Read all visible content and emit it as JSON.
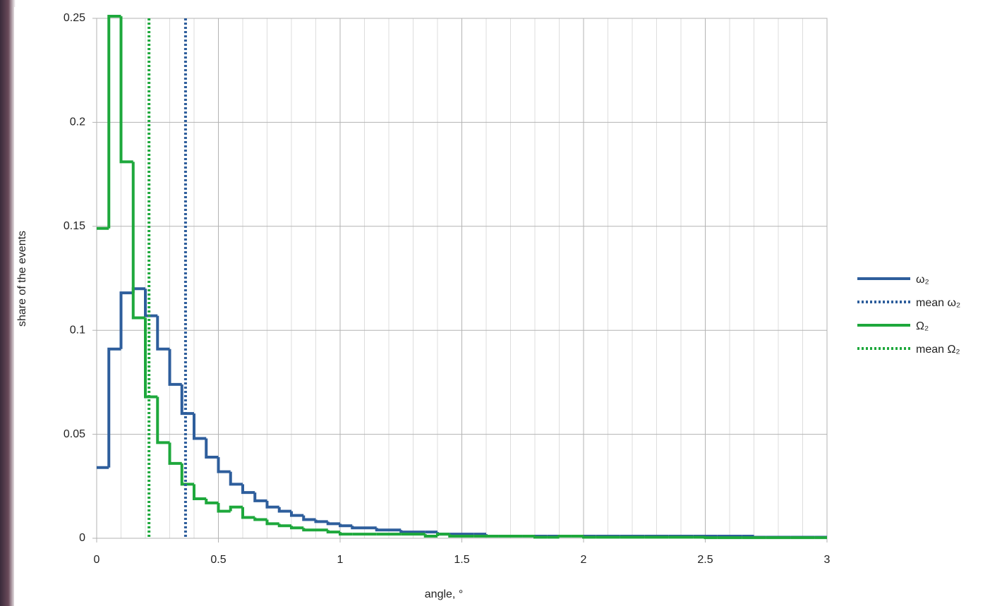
{
  "chart_data": {
    "type": "histogram",
    "x_label": "angle, °",
    "y_label": "share of the events",
    "bins": [
      0,
      0.05,
      0.1,
      0.15,
      0.2,
      0.25,
      0.3,
      0.35,
      0.4,
      0.45,
      0.5,
      0.55,
      0.6,
      0.65,
      0.7,
      0.75,
      0.8,
      0.85,
      0.9,
      0.95,
      1,
      1.05,
      1.1,
      1.15,
      1.2,
      1.25,
      1.3,
      1.35,
      1.4,
      1.45,
      1.5,
      1.55,
      1.6,
      1.65,
      1.7,
      1.75,
      1.8,
      1.85,
      1.9,
      1.95,
      2,
      2.05,
      2.1,
      2.15,
      2.2,
      2.25,
      2.3,
      2.35,
      2.4,
      2.45,
      2.5,
      2.55,
      2.6,
      2.65,
      2.7,
      2.75,
      2.8,
      2.85,
      2.9,
      2.95,
      3
    ],
    "series": [
      {
        "name": "ω₂",
        "color": "#2e5e9c",
        "values": [
          0.034,
          0.091,
          0.118,
          0.12,
          0.107,
          0.091,
          0.074,
          0.06,
          0.048,
          0.039,
          0.032,
          0.026,
          0.022,
          0.018,
          0.015,
          0.013,
          0.011,
          0.009,
          0.008,
          0.007,
          0.006,
          0.005,
          0.005,
          0.004,
          0.004,
          0.003,
          0.003,
          0.003,
          0.002,
          0.002,
          0.002,
          0.002,
          0.001,
          0.001,
          0.001,
          0.001,
          0.001,
          0.001,
          0.001,
          0.001,
          0.001,
          0.001,
          0.001,
          0.001,
          0.001,
          0.001,
          0.001,
          0.001,
          0.001,
          0.001,
          0.001,
          0.001,
          0.001,
          0.001,
          0.0005,
          0.0005,
          0.0005,
          0.0005,
          0.0005,
          0.0005
        ]
      },
      {
        "name": "Ω₂",
        "color": "#1ea83c",
        "values": [
          0.149,
          0.251,
          0.181,
          0.106,
          0.068,
          0.046,
          0.036,
          0.026,
          0.019,
          0.017,
          0.013,
          0.015,
          0.01,
          0.009,
          0.007,
          0.006,
          0.005,
          0.004,
          0.004,
          0.003,
          0.002,
          0.002,
          0.002,
          0.002,
          0.002,
          0.002,
          0.002,
          0.001,
          0.002,
          0.001,
          0.001,
          0.001,
          0.001,
          0.001,
          0.001,
          0.001,
          0.0005,
          0.0005,
          0.001,
          0.001,
          0.0005,
          0.0005,
          0.0005,
          0.0005,
          0.0005,
          0.0005,
          0.0005,
          0.0005,
          0.0005,
          0.0005,
          0.0003,
          0.0003,
          0.0003,
          0.0003,
          0.0003,
          0.0003,
          0.0003,
          0.0003,
          0.0003,
          0.0003
        ]
      }
    ],
    "mean_lines": [
      {
        "name": "mean ω₂",
        "color": "#2e5e9c",
        "value": 0.365
      },
      {
        "name": "mean Ω₂",
        "color": "#1ea83c",
        "value": 0.215
      }
    ],
    "xlim": [
      0,
      3
    ],
    "ylim": [
      0,
      0.25
    ],
    "xticks": [
      0,
      0.5,
      1,
      1.5,
      2,
      2.5,
      3
    ],
    "x_minor_ticks": [
      0.1,
      0.2,
      0.3,
      0.4,
      0.6,
      0.7,
      0.8,
      0.9,
      1.1,
      1.2,
      1.3,
      1.4,
      1.6,
      1.7,
      1.8,
      1.9,
      2.1,
      2.2,
      2.3,
      2.4,
      2.6,
      2.7,
      2.8,
      2.9
    ],
    "yticks": [
      0,
      0.05,
      0.1,
      0.15,
      0.2,
      0.25
    ],
    "grid": true,
    "legend": "right"
  }
}
